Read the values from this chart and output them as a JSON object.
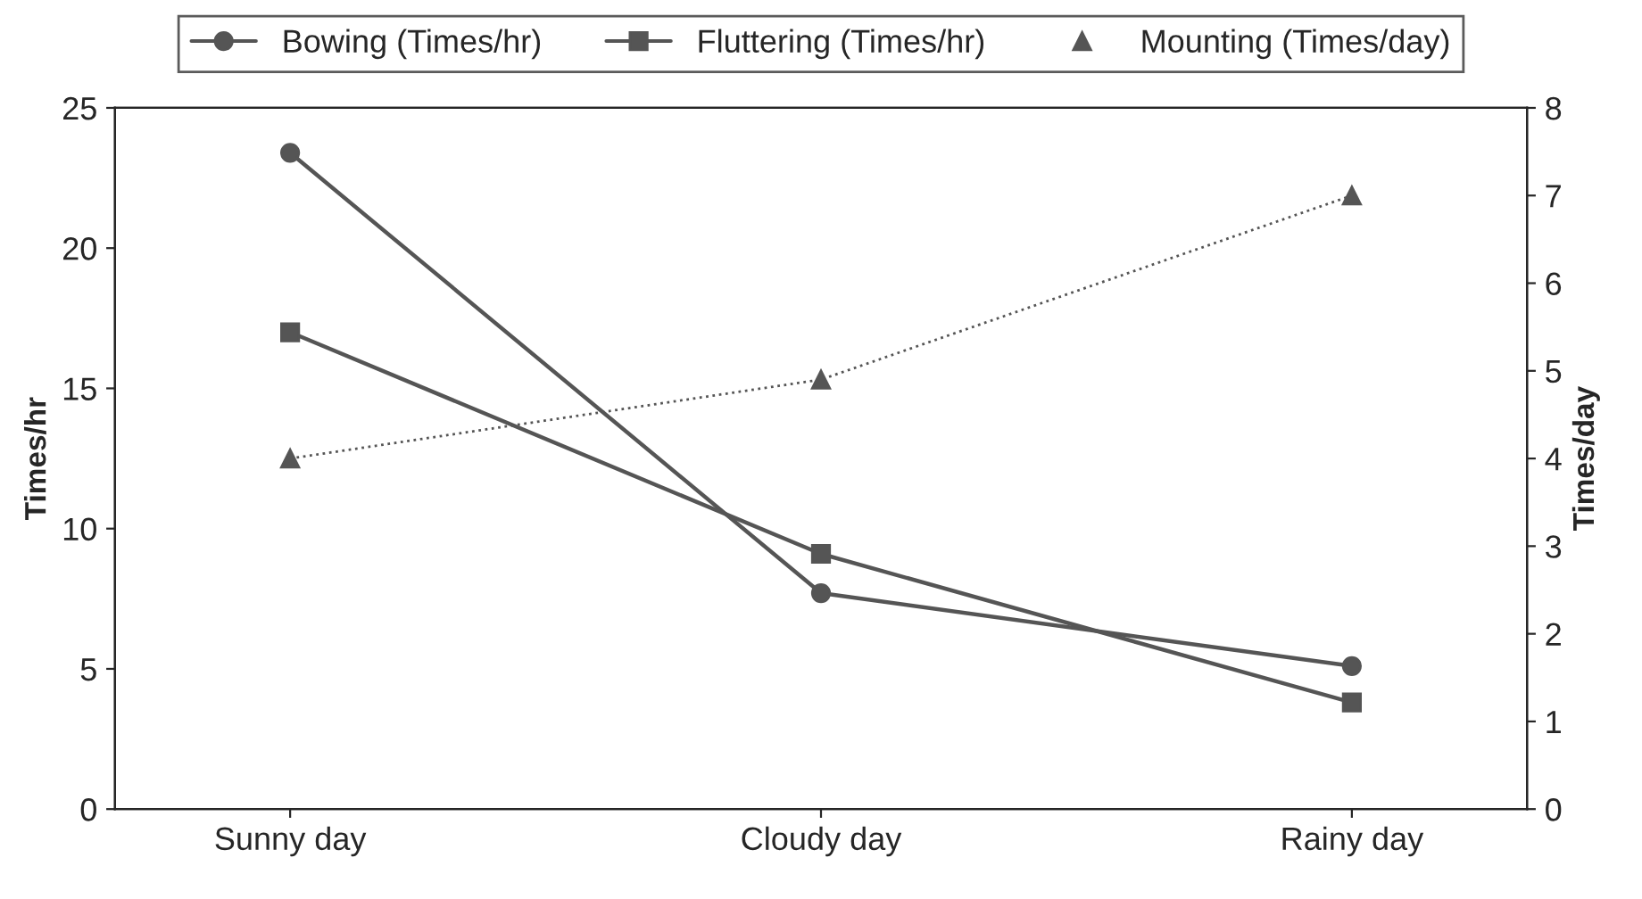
{
  "chart_data": {
    "type": "line",
    "ylabel": "Times/hr",
    "y2label": "Times/day",
    "categories": [
      "Sunny day",
      "Cloudy day",
      "Rainy day"
    ],
    "series": [
      {
        "name": "Bowing (Times/hr)",
        "color": "#555555",
        "values": [
          23.4,
          7.7,
          5.1
        ],
        "marker": "circle",
        "line_style": "solid"
      },
      {
        "name": "Fluttering (Times/hr)",
        "color": "#555555",
        "values": [
          17.0,
          9.1,
          3.8
        ],
        "marker": "square",
        "line_style": "solid"
      },
      {
        "name": "Mounting (Times/day)",
        "color": "#555555",
        "values": [
          4.0,
          4.9,
          7.0
        ],
        "marker": "triangle",
        "line_style": "dotted",
        "axis": "y2"
      }
    ],
    "ylim": [
      0,
      25
    ],
    "yticks": [
      0,
      5,
      10,
      15,
      20,
      25
    ],
    "y2lim": [
      0,
      8
    ],
    "y2ticks": [
      0,
      1,
      2,
      3,
      4,
      5,
      6,
      7,
      8
    ],
    "legend": "top",
    "grid": false
  }
}
